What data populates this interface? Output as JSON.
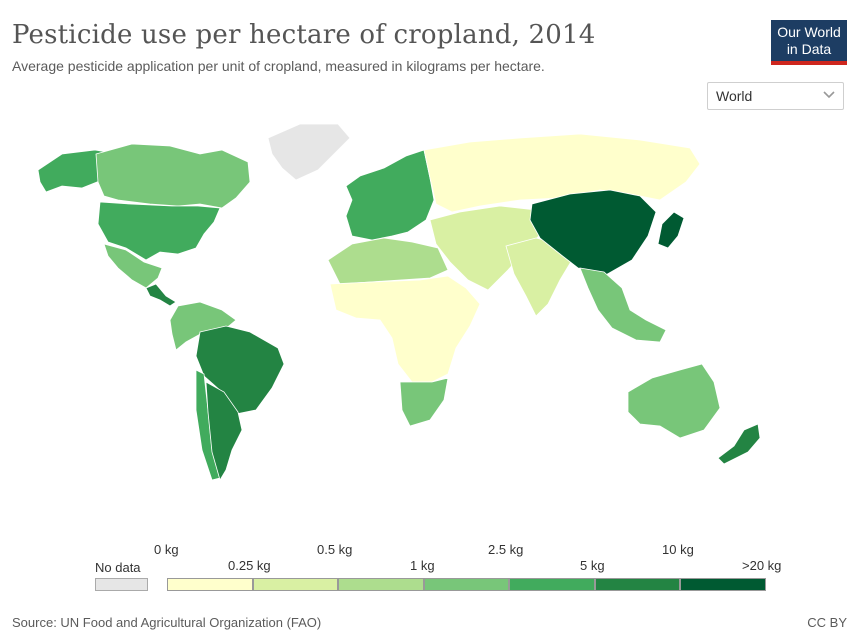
{
  "header": {
    "title": "Pesticide use per hectare of cropland, 2014",
    "subtitle": "Average pesticide application per unit of cropland, measured in kilograms per hectare."
  },
  "logo": {
    "line1": "Our World",
    "line2": "in Data"
  },
  "region_selector": {
    "selected": "World"
  },
  "legend": {
    "no_data_label": "No data",
    "no_data_color": "#e6e6e6",
    "ticks_top": [
      "0 kg",
      "0.5 kg",
      "2.5 kg",
      "10 kg"
    ],
    "ticks_bottom": [
      "0.25 kg",
      "1 kg",
      "5 kg",
      ">20 kg"
    ],
    "bins": [
      {
        "range": "0–0.25 kg",
        "color": "#ffffcc"
      },
      {
        "range": "0.25–0.5 kg",
        "color": "#d9f0a3"
      },
      {
        "range": "0.5–1 kg",
        "color": "#addd8e"
      },
      {
        "range": "1–2.5 kg",
        "color": "#78c679"
      },
      {
        "range": "2.5–5 kg",
        "color": "#41ab5d"
      },
      {
        "range": "5–10 kg",
        "color": "#238443"
      },
      {
        "range": "10–20 kg",
        "color": "#005a32"
      }
    ]
  },
  "regions": {
    "north_america_west": "#41ab5d",
    "canada": "#78c679",
    "usa": "#41ab5d",
    "greenland": "#e6e6e6",
    "mexico": "#78c679",
    "central_america": "#238443",
    "south_america_north": "#78c679",
    "brazil": "#238443",
    "argentina": "#238443",
    "chile": "#41ab5d",
    "europe": "#41ab5d",
    "russia": "#ffffcc",
    "north_africa": "#addd8e",
    "africa": "#ffffcc",
    "southern_africa": "#78c679",
    "middle_east": "#d9f0a3",
    "india": "#d9f0a3",
    "china": "#005a32",
    "japan": "#005a32",
    "southeast_asia": "#78c679",
    "australia": "#78c679",
    "new_zealand": "#238443"
  },
  "footer": {
    "source": "Source: UN Food and Agricultural Organization (FAO)",
    "license": "CC BY"
  }
}
